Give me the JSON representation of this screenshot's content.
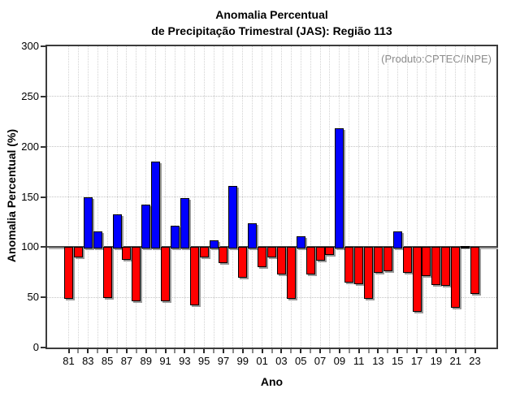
{
  "title": {
    "line1": "Anomalia Percentual",
    "line2": "de Precipitação Trimestral (JAS): Região 113"
  },
  "annotation": "(Produto:CPTEC/INPE)",
  "chart_data": {
    "type": "bar",
    "title": "Anomalia Percentual de Precipitação Trimestral (JAS): Região 113",
    "xlabel": "Ano",
    "ylabel": "Anomalia Percentual (%)",
    "ylim": [
      0,
      300
    ],
    "yticks": [
      0,
      50,
      100,
      150,
      200,
      250,
      300
    ],
    "baseline": 100,
    "grid": "dotted",
    "legend": "none",
    "categories": [
      "81",
      "82",
      "83",
      "84",
      "85",
      "86",
      "87",
      "88",
      "89",
      "90",
      "91",
      "92",
      "93",
      "94",
      "95",
      "96",
      "97",
      "98",
      "99",
      "00",
      "01",
      "02",
      "03",
      "04",
      "05",
      "06",
      "07",
      "08",
      "09",
      "10",
      "11",
      "12",
      "13",
      "14",
      "15",
      "16",
      "17",
      "18",
      "19",
      "20",
      "21",
      "22",
      "23"
    ],
    "values": [
      50,
      91,
      150,
      116,
      51,
      133,
      89,
      48,
      142,
      185,
      48,
      121,
      149,
      44,
      91,
      107,
      86,
      161,
      71,
      124,
      82,
      91,
      74,
      50,
      111,
      74,
      88,
      94,
      218,
      66,
      65,
      50,
      76,
      78,
      116,
      76,
      37,
      73,
      64,
      63,
      41,
      100,
      55
    ],
    "colors": {
      "above_baseline": "#0000ff",
      "below_baseline": "#ff0000",
      "bar_outline": "#000000",
      "annotation_text": "#8c8c8c",
      "frame": "#3c3c3c"
    }
  }
}
